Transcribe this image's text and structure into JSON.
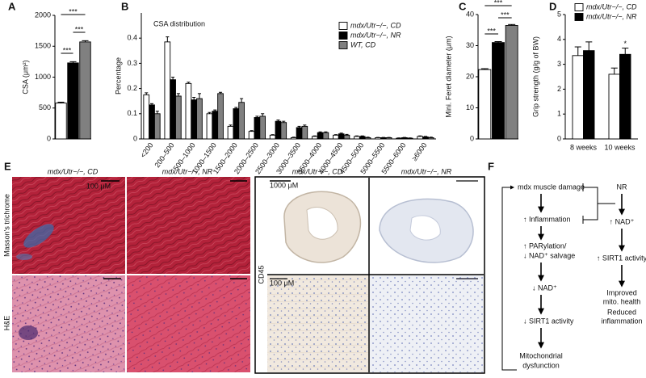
{
  "panel_labels": [
    "A",
    "B",
    "C",
    "D",
    "E",
    "F"
  ],
  "chart_data": [
    {
      "type": "bar",
      "ylabel": "CSA (μm²)",
      "categories": [
        null,
        null,
        null
      ],
      "values": [
        580,
        1230,
        1570
      ],
      "errors": [
        15,
        20,
        20
      ],
      "colors": [
        "#ffffff",
        "#000000",
        "#808080"
      ],
      "ylim": [
        0,
        2000
      ],
      "yticks": [
        0,
        500,
        1000,
        1500,
        2000
      ],
      "annotations": [
        "***",
        "***",
        "***"
      ]
    },
    {
      "type": "bar",
      "title": "CSA distribution",
      "ylabel": "Percentage",
      "categories": [
        "<200",
        "200–500",
        "500–1000",
        "1000–1500",
        "1500–2000",
        "2000–2500",
        "2500–3000",
        "3000–3500",
        "3500–4000",
        "4000–4500",
        "4500–5000",
        "5000–5500",
        "5500–6000",
        "≥6000"
      ],
      "series": [
        {
          "name": "mdx/Utr−/−, CD",
          "color": "#ffffff",
          "values": [
            0.175,
            0.385,
            0.22,
            0.1,
            0.05,
            0.03,
            0.015,
            0.005,
            0.01,
            0.015,
            0.01,
            0.005,
            0.003,
            0.01
          ],
          "errors": [
            0.008,
            0.02,
            0.005,
            0.005,
            0.005,
            0.003,
            0.002,
            0.002,
            0.002,
            0.002,
            0.002,
            0.001,
            0.001,
            0.002
          ]
        },
        {
          "name": "mdx/Utr−/−, NR",
          "color": "#000000",
          "values": [
            0.135,
            0.235,
            0.155,
            0.11,
            0.12,
            0.085,
            0.07,
            0.045,
            0.025,
            0.02,
            0.01,
            0.005,
            0.005,
            0.008
          ],
          "errors": [
            0.005,
            0.01,
            0.01,
            0.005,
            0.005,
            0.005,
            0.005,
            0.005,
            0.003,
            0.003,
            0.002,
            0.001,
            0.001,
            0.002
          ]
        },
        {
          "name": "WT, CD",
          "color": "#808080",
          "values": [
            0.1,
            0.17,
            0.16,
            0.18,
            0.145,
            0.09,
            0.065,
            0.05,
            0.025,
            0.015,
            0.005,
            0.005,
            0.003,
            0.005
          ],
          "errors": [
            0.01,
            0.01,
            0.02,
            0.005,
            0.015,
            0.01,
            0.005,
            0.005,
            0.003,
            0.003,
            0.002,
            0.001,
            0.001,
            0.002
          ]
        }
      ],
      "ylim": [
        0,
        0.5
      ],
      "yticks": [
        0,
        0.1,
        0.2,
        0.3,
        0.4
      ],
      "legend": "upper right"
    },
    {
      "type": "bar",
      "ylabel": "Mini. Feret diameter (μm)",
      "categories": [
        null,
        null,
        null
      ],
      "values": [
        22.3,
        31,
        36.5
      ],
      "errors": [
        0.3,
        0.3,
        0.3
      ],
      "colors": [
        "#ffffff",
        "#000000",
        "#808080"
      ],
      "ylim": [
        0,
        40
      ],
      "yticks": [
        0,
        10,
        20,
        30,
        40
      ],
      "annotations": [
        "***",
        "***",
        "***"
      ]
    },
    {
      "type": "bar",
      "ylabel": "Grip strength (g/g of BW)",
      "categories": [
        "8 weeks",
        "10 weeks"
      ],
      "series": [
        {
          "name": "mdx/Utr−/−, CD",
          "color": "#ffffff",
          "values": [
            3.35,
            2.6
          ],
          "errors": [
            0.35,
            0.25
          ]
        },
        {
          "name": "mdx/Utr−/−, NR",
          "color": "#000000",
          "values": [
            3.55,
            3.4
          ],
          "errors": [
            0.35,
            0.25
          ]
        }
      ],
      "ylim": [
        0,
        5
      ],
      "yticks": [
        0,
        1,
        2,
        3,
        4,
        5
      ],
      "annotations": [
        "*"
      ],
      "legend": "upper left"
    }
  ],
  "histology": {
    "columns": [
      "mdx/Utr−/−, CD",
      "mdx/Utr−/−, NR"
    ],
    "rows": [
      "Masson's trichrome",
      "H&E"
    ],
    "scale": "100 μM"
  },
  "cd45": {
    "label": "CD45",
    "columns": [
      "mdx/Utr−/−, CD",
      "mdx/Utr−/−, NR"
    ],
    "scales": [
      "1000 μM",
      "100 μM"
    ]
  },
  "diagram": {
    "nodes": [
      "mdx muscle damage",
      "↑ Inflammation",
      "↑ PARylation/",
      "↓ NAD⁺ salvage",
      "↓ NAD⁺",
      "↓ SIRT1 activity",
      "Mitochondrial",
      "dysfunction",
      "NR",
      "↑ NAD⁺",
      "↑ SIRT1 activity",
      "Improved",
      "mito. health",
      "Reduced",
      "inflammation"
    ]
  }
}
